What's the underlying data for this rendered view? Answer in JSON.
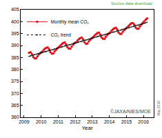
{
  "chart_data": {
    "type": "line",
    "x_label": "Year",
    "annotations": [
      "Source data download",
      "©JAXA/NIES/MOE",
      "May 2016"
    ],
    "x": [
      2009.29,
      2009.38,
      2009.46,
      2009.54,
      2009.63,
      2009.71,
      2009.79,
      2009.88,
      2009.96,
      2010.04,
      2010.13,
      2010.21,
      2010.29,
      2010.38,
      2010.46,
      2010.54,
      2010.63,
      2010.71,
      2010.79,
      2010.88,
      2010.96,
      2011.04,
      2011.13,
      2011.21,
      2011.29,
      2011.38,
      2011.46,
      2011.54,
      2011.63,
      2011.71,
      2011.79,
      2011.88,
      2011.96,
      2012.04,
      2012.13,
      2012.21,
      2012.29,
      2012.38,
      2012.46,
      2012.54,
      2012.63,
      2012.71,
      2012.79,
      2012.88,
      2012.96,
      2013.04,
      2013.13,
      2013.21,
      2013.29,
      2013.38,
      2013.46,
      2013.54,
      2013.63,
      2013.71,
      2013.79,
      2013.88,
      2013.96,
      2014.04,
      2014.13,
      2014.21,
      2014.29,
      2014.38,
      2014.46,
      2014.54,
      2014.63,
      2014.71,
      2014.79,
      2014.88,
      2014.96,
      2015.04,
      2015.13,
      2015.21,
      2015.29,
      2015.38,
      2015.46,
      2015.54,
      2015.63,
      2015.71,
      2015.79,
      2015.88,
      2015.96,
      2016.04,
      2016.13,
      2016.21
    ],
    "series": [
      {
        "name": "Monthly mean CO₂",
        "color": "#e8101a",
        "marker": "circle",
        "line_style": "solid",
        "values": [
          387.0,
          387.2,
          386.4,
          385.2,
          384.6,
          384.7,
          385.5,
          386.3,
          386.9,
          387.3,
          388.0,
          388.6,
          389.0,
          389.2,
          388.5,
          387.2,
          386.6,
          386.7,
          387.6,
          388.3,
          388.9,
          389.4,
          390.0,
          390.6,
          391.1,
          391.3,
          390.5,
          389.3,
          388.7,
          388.7,
          389.6,
          390.4,
          391.0,
          391.4,
          392.1,
          392.7,
          393.1,
          393.3,
          392.6,
          391.4,
          390.7,
          390.8,
          391.7,
          392.4,
          393.0,
          393.5,
          394.2,
          394.7,
          395.2,
          395.4,
          394.6,
          393.4,
          392.8,
          392.8,
          393.7,
          394.5,
          395.0,
          395.5,
          396.2,
          396.8,
          397.2,
          397.4,
          396.7,
          395.4,
          394.8,
          394.9,
          395.8,
          396.5,
          397.1,
          397.6,
          398.2,
          398.8,
          399.3,
          399.4,
          398.7,
          397.5,
          397.0,
          397.1,
          398.0,
          398.8,
          399.5,
          400.1,
          400.8,
          401.3
        ]
      },
      {
        "name": "CO₂ trend",
        "color": "#000000",
        "marker": "circle",
        "line_style": "dotted",
        "values": [
          385.5,
          385.7,
          385.8,
          386.0,
          386.2,
          386.4,
          386.5,
          386.7,
          386.9,
          387.0,
          387.2,
          387.4,
          387.5,
          387.7,
          387.9,
          388.0,
          388.2,
          388.4,
          388.6,
          388.7,
          388.9,
          389.1,
          389.2,
          389.4,
          389.6,
          389.8,
          389.9,
          390.1,
          390.3,
          390.4,
          390.6,
          390.8,
          391.0,
          391.1,
          391.3,
          391.5,
          391.6,
          391.8,
          392.0,
          392.2,
          392.3,
          392.5,
          392.7,
          392.8,
          393.0,
          393.2,
          393.4,
          393.5,
          393.7,
          393.9,
          394.0,
          394.2,
          394.4,
          394.5,
          394.7,
          394.9,
          395.0,
          395.2,
          395.4,
          395.6,
          395.7,
          395.9,
          396.1,
          396.2,
          396.4,
          396.6,
          396.8,
          396.9,
          397.1,
          397.3,
          397.4,
          397.6,
          397.8,
          397.9,
          398.1,
          398.3,
          398.5,
          398.6,
          398.8,
          399.0,
          399.1,
          399.3,
          399.5,
          399.7
        ]
      }
    ],
    "xlim": [
      2008.8,
      2016.6
    ],
    "xticks": [
      2009,
      2010,
      2011,
      2012,
      2013,
      2014,
      2015,
      2016
    ],
    "ylim": [
      360,
      405
    ],
    "yticks": [
      360,
      365,
      370,
      375,
      380,
      385,
      390,
      395,
      400,
      405
    ],
    "grid": false,
    "legend": "top-left"
  }
}
